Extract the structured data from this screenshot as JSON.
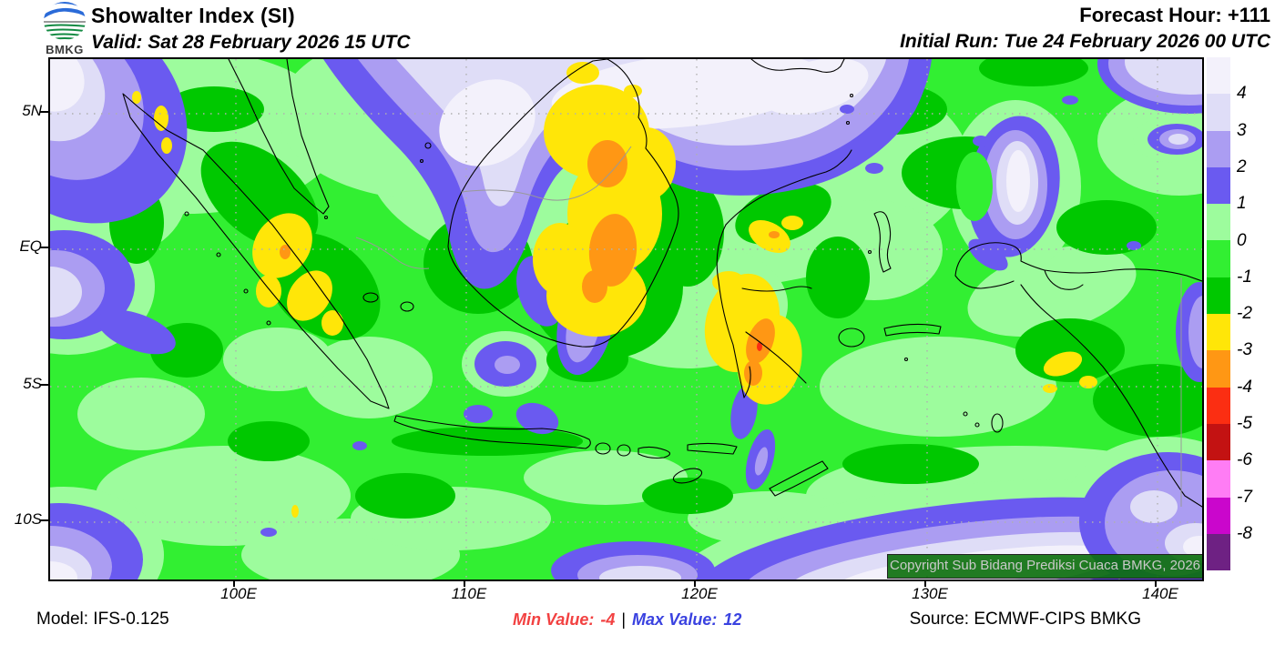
{
  "header": {
    "logo_text": "BMKG",
    "title": "Showalter Index (SI)",
    "valid": "Valid: Sat 28 February 2026 15 UTC",
    "forecast_hour": "Forecast Hour: +111",
    "initial_run": "Initial Run: Tue 24 February 2026 00 UTC"
  },
  "map": {
    "copyright": "Copyright Sub Bidang Prediksi Cuaca BMKG, 2026",
    "axes": {
      "y": [
        "5N",
        "EQ",
        "5S",
        "10S"
      ],
      "x": [
        "100E",
        "110E",
        "120E",
        "130E",
        "140E"
      ]
    }
  },
  "legend": {
    "labels": [
      "4",
      "3",
      "2",
      "1",
      "0",
      "-1",
      "-2",
      "-3",
      "-4",
      "-5",
      "-6",
      "-7",
      "-8"
    ],
    "colors": [
      "#f3f1fb",
      "#dfddf7",
      "#ab9df2",
      "#6a5af0",
      "#9dfc9d",
      "#32ef32",
      "#00c800",
      "#ffe608",
      "#ff9714",
      "#fb2e12",
      "#c31212",
      "#ff7df5",
      "#ca06cc",
      "#6e2183"
    ]
  },
  "footer": {
    "model": "Model: IFS-0.125",
    "min_label": "Min Value:",
    "min_value": "-4",
    "separator": "|",
    "max_label": "Max Value:",
    "max_value": "12",
    "min_color": "#f24141",
    "max_color": "#3a42e0",
    "source": "Source: ECMWF-CIPS BMKG"
  }
}
